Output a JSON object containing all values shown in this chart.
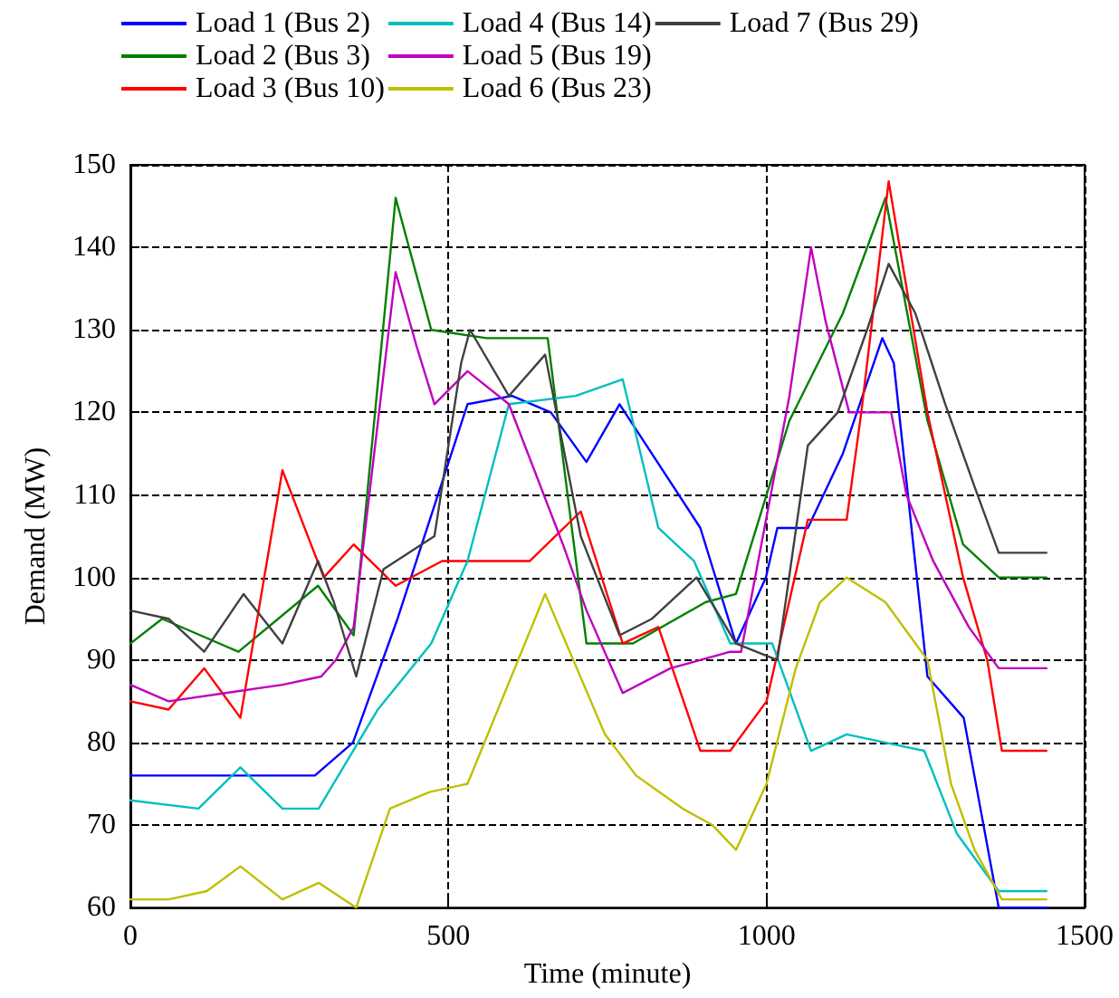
{
  "chart_data": {
    "type": "line",
    "xlabel": "Time (minute)",
    "ylabel": "Demand (MW)",
    "xlim": [
      0,
      1500
    ],
    "xticks": [
      0,
      500,
      1000,
      1500
    ],
    "ylim": [
      60,
      150
    ],
    "yticks": [
      60,
      70,
      80,
      90,
      100,
      110,
      120,
      130,
      140,
      150
    ],
    "grid": true,
    "legend": "top",
    "marker": "none",
    "line_style": "solid",
    "series": [
      {
        "name": "Load 1 (Bus 2)",
        "color": "#0000ff",
        "x": [
          0,
          120,
          290,
          350,
          420,
          530,
          600,
          661,
          717,
          769,
          896,
          952,
          999,
          1017,
          1065,
          1120,
          1182,
          1200,
          1253,
          1310,
          1365,
          1440
        ],
        "values": [
          76,
          76,
          76,
          80,
          95,
          121,
          122,
          120,
          114,
          121,
          106,
          92,
          100,
          106,
          106,
          115,
          129,
          126,
          88,
          83,
          60,
          60
        ]
      },
      {
        "name": "Load 2 (Bus 3)",
        "color": "#008000",
        "x": [
          0,
          50,
          170,
          295,
          351,
          417,
          473,
          560,
          656,
          717,
          790,
          904,
          952,
          1036,
          1120,
          1187,
          1253,
          1309,
          1365,
          1440
        ],
        "values": [
          92,
          95,
          91,
          99,
          93,
          146,
          130,
          129,
          129,
          92,
          92,
          97,
          98,
          119,
          132,
          146,
          119,
          104,
          100,
          100
        ]
      },
      {
        "name": "Load 3 (Bus 10)",
        "color": "#ff0000",
        "x": [
          0,
          60,
          116,
          173,
          239,
          304,
          351,
          417,
          490,
          628,
          708,
          774,
          830,
          896,
          943,
          1000,
          1065,
          1126,
          1149,
          1192,
          1253,
          1309,
          1347,
          1370,
          1440
        ],
        "values": [
          85,
          84,
          89,
          83,
          113,
          100,
          104,
          99,
          102,
          102,
          108,
          92,
          94,
          79,
          79,
          85,
          107,
          107,
          120,
          148,
          120,
          100,
          90,
          79,
          79
        ]
      },
      {
        "name": "Load 4 (Bus 14)",
        "color": "#00bfbf",
        "x": [
          0,
          107,
          173,
          239,
          296,
          389,
          473,
          530,
          595,
          700,
          774,
          830,
          886,
          943,
          1009,
          1070,
          1126,
          1248,
          1299,
          1365,
          1440
        ],
        "values": [
          73,
          72,
          77,
          72,
          72,
          84,
          92,
          102,
          121,
          122,
          124,
          106,
          102,
          92,
          92,
          79,
          81,
          79,
          69,
          62,
          62
        ]
      },
      {
        "name": "Load 5 (Bus 19)",
        "color": "#bf00bf",
        "x": [
          0,
          60,
          239,
          300,
          323,
          351,
          417,
          450,
          478,
          530,
          595,
          680,
          717,
          774,
          849,
          943,
          960,
          1036,
          1070,
          1093,
          1130,
          1196,
          1220,
          1262,
          1318,
          1365,
          1440
        ],
        "values": [
          87,
          85,
          87,
          88,
          90,
          94,
          137,
          128,
          121,
          125,
          121,
          104,
          96,
          86,
          89,
          91,
          91,
          122,
          140,
          131,
          120,
          120,
          110,
          102,
          94,
          89,
          89
        ]
      },
      {
        "name": "Load 6 (Bus 23)",
        "color": "#bfbf00",
        "x": [
          0,
          60,
          120,
          173,
          239,
          296,
          355,
          408,
          470,
          530,
          652,
          746,
          795,
          868,
          915,
          952,
          1000,
          1046,
          1084,
          1126,
          1187,
          1253,
          1290,
          1327,
          1370,
          1440
        ],
        "values": [
          61,
          61,
          62,
          65,
          61,
          63,
          60,
          72,
          74,
          75,
          98,
          81,
          76,
          72,
          70,
          67,
          75,
          89,
          97,
          100,
          97,
          90,
          75,
          67,
          61,
          61
        ]
      },
      {
        "name": "Load 7 (Bus 29)",
        "color": "#404040",
        "x": [
          0,
          60,
          116,
          178,
          239,
          295,
          320,
          355,
          398,
          478,
          520,
          534,
          595,
          652,
          708,
          769,
          820,
          890,
          952,
          1017,
          1065,
          1112,
          1158,
          1192,
          1234,
          1281,
          1327,
          1365,
          1440
        ],
        "values": [
          96,
          95,
          91,
          98,
          92,
          102,
          97,
          88,
          101,
          105,
          126,
          130,
          122,
          127,
          105,
          93,
          95,
          100,
          92,
          90,
          116,
          120,
          130,
          138,
          132,
          121,
          111,
          103,
          103
        ]
      }
    ]
  }
}
